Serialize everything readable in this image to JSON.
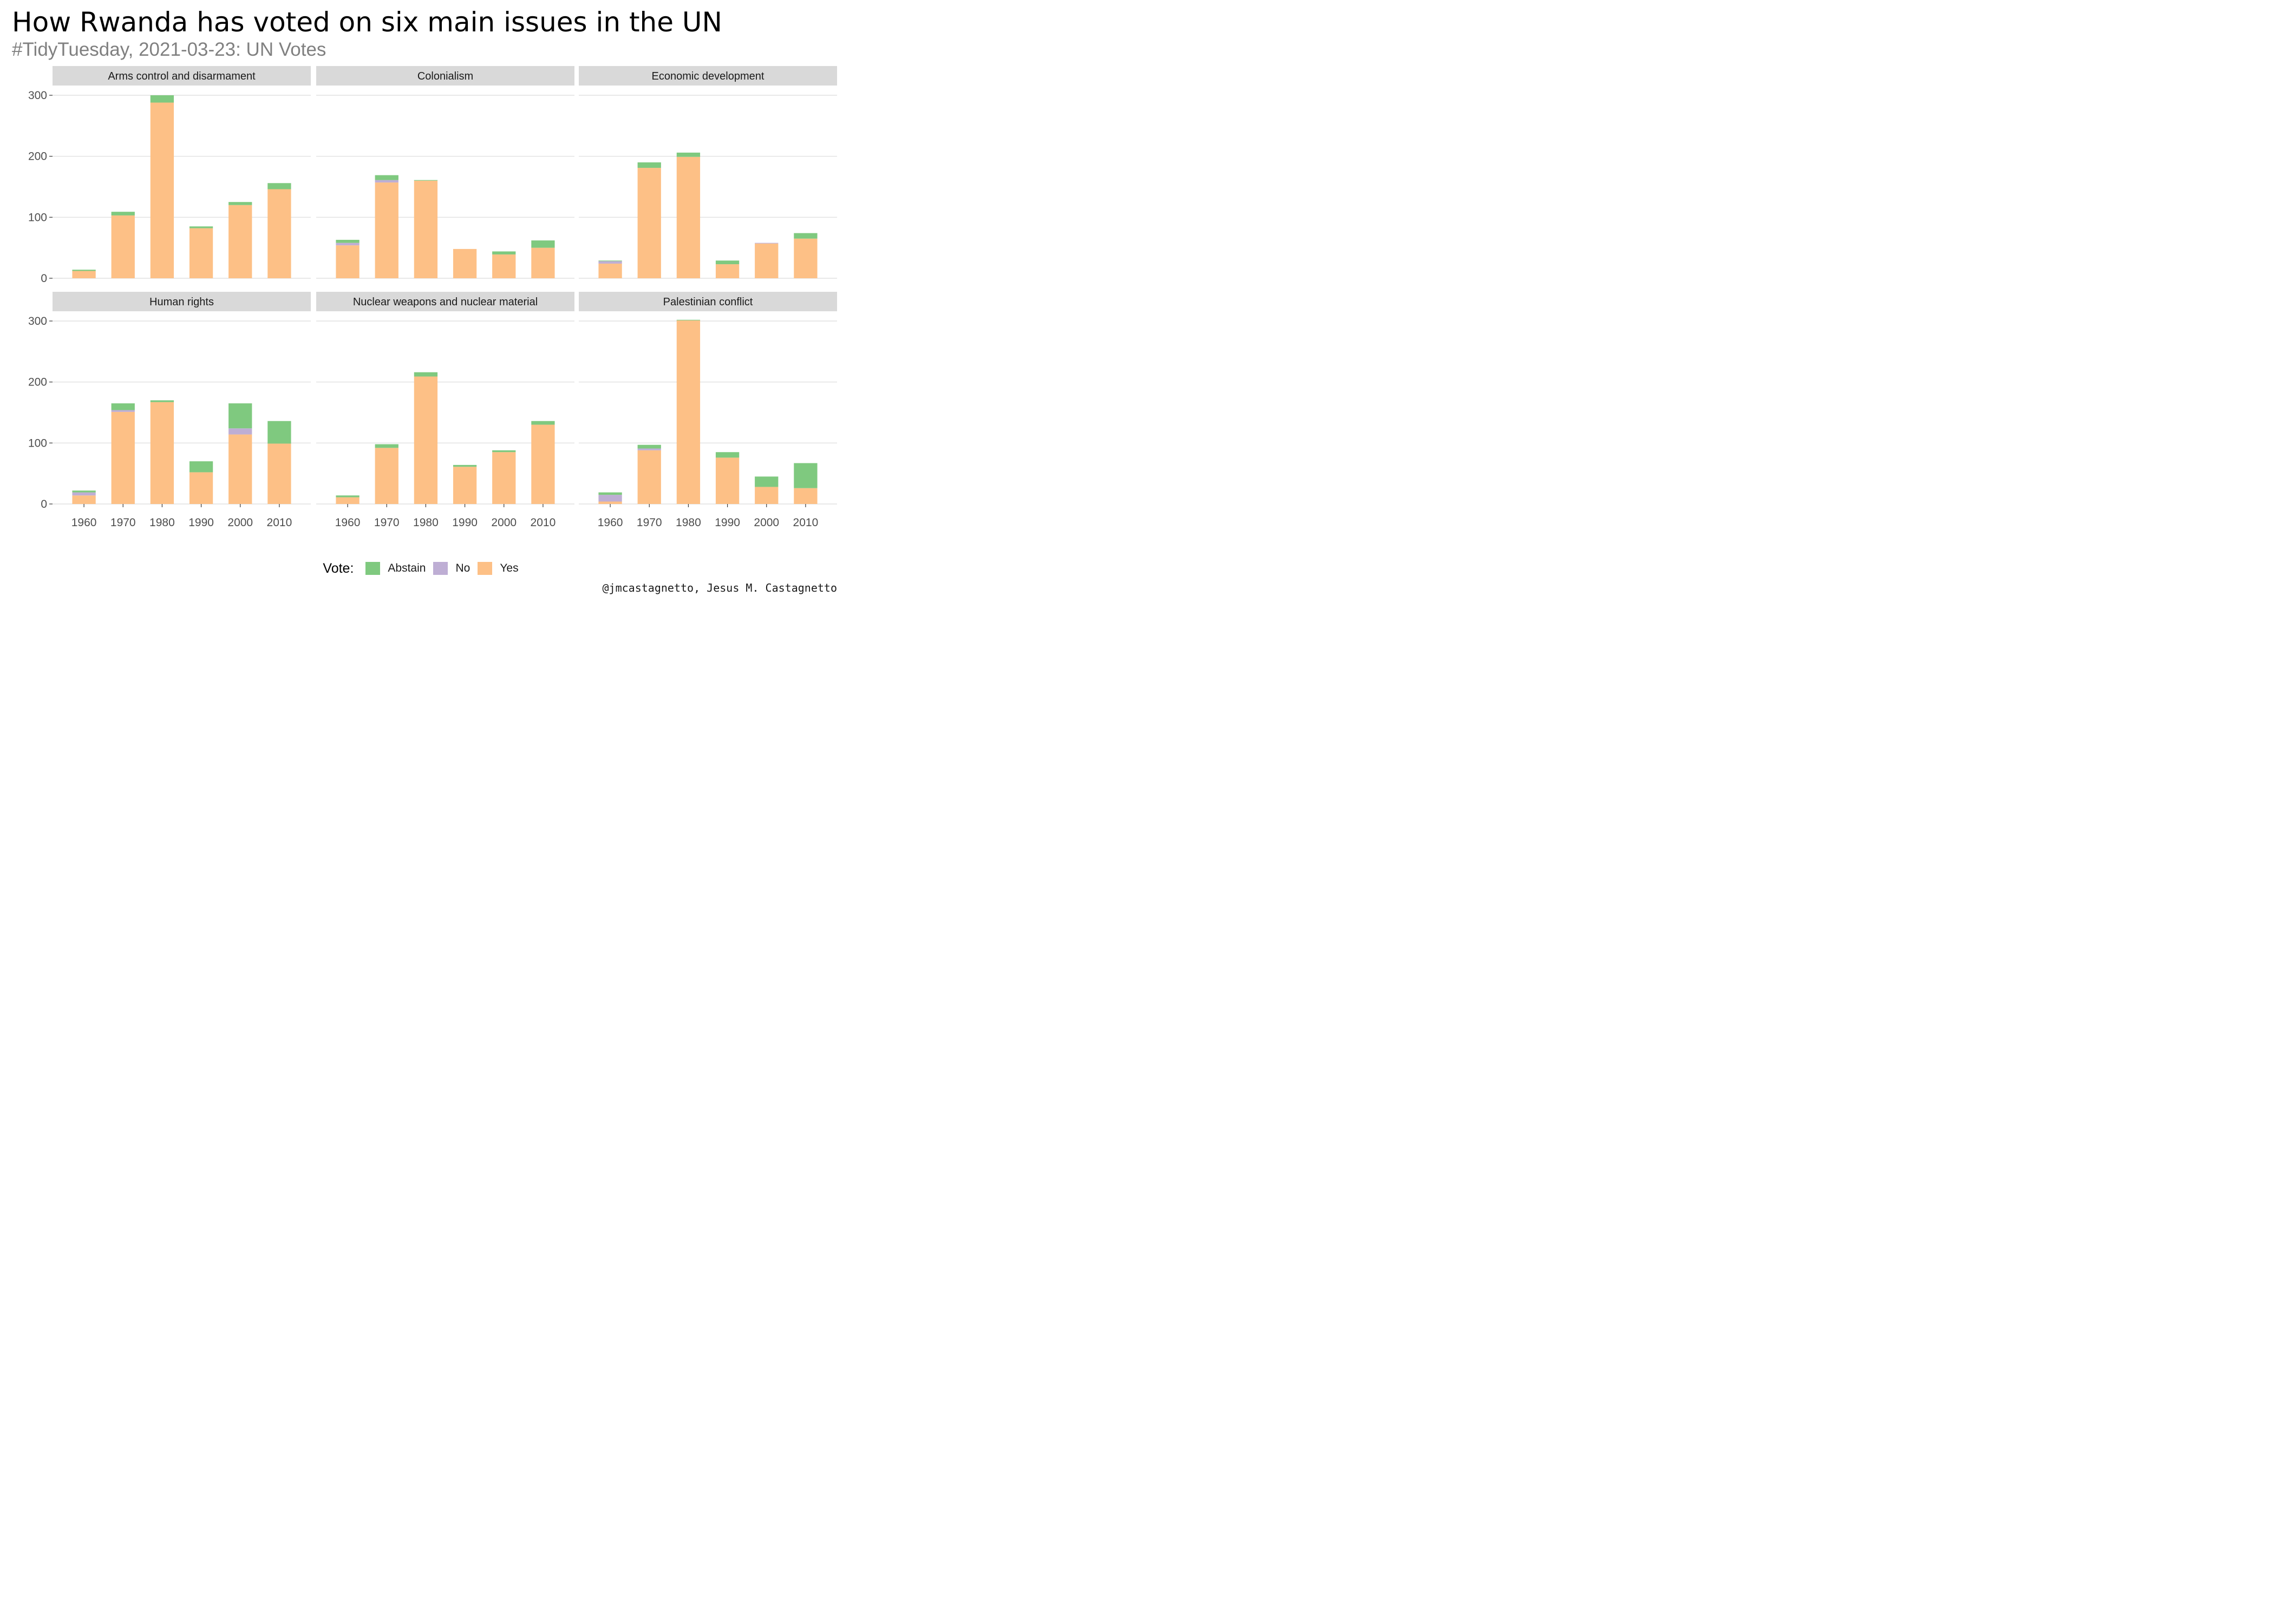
{
  "header": {
    "title": "How Rwanda has voted on six main issues in the UN",
    "subtitle": "#TidyTuesday, 2021-03-23: UN Votes"
  },
  "legend": {
    "title": "Vote:",
    "items": [
      {
        "label": "Abstain",
        "color": "#7fc97f"
      },
      {
        "label": "No",
        "color": "#beaed4"
      },
      {
        "label": "Yes",
        "color": "#fdc086"
      }
    ]
  },
  "caption": "@jmcastagnetto, Jesus M. Castagnetto",
  "chart_data": {
    "type": "bar",
    "stacked": true,
    "facet_layout": "3 columns x 2 rows",
    "categories": [
      "1960",
      "1970",
      "1980",
      "1990",
      "2000",
      "2010"
    ],
    "y_ticks": [
      0,
      100,
      200,
      300
    ],
    "ylim": [
      0,
      310
    ],
    "grid": true,
    "legend_position": "bottom",
    "stack_order_bottom_to_top": [
      "Yes",
      "No",
      "Abstain"
    ],
    "panels": [
      {
        "title": "Arms control and disarmament",
        "series": [
          {
            "name": "Yes",
            "values": [
              12,
              103,
              288,
              82,
              120,
              146
            ]
          },
          {
            "name": "No",
            "values": [
              0,
              0,
              0,
              0,
              0,
              0
            ]
          },
          {
            "name": "Abstain",
            "values": [
              2,
              6,
              12,
              3,
              5,
              10
            ]
          }
        ]
      },
      {
        "title": "Colonialism",
        "series": [
          {
            "name": "Yes",
            "values": [
              54,
              157,
              160,
              48,
              39,
              50
            ]
          },
          {
            "name": "No",
            "values": [
              4,
              4,
              0,
              0,
              0,
              0
            ]
          },
          {
            "name": "Abstain",
            "values": [
              5,
              8,
              1,
              0,
              5,
              12
            ]
          }
        ]
      },
      {
        "title": "Economic development",
        "series": [
          {
            "name": "Yes",
            "values": [
              24,
              181,
              199,
              23,
              57,
              65
            ]
          },
          {
            "name": "No",
            "values": [
              4,
              0,
              0,
              0,
              1,
              0
            ]
          },
          {
            "name": "Abstain",
            "values": [
              1,
              9,
              7,
              6,
              0,
              9
            ]
          }
        ]
      },
      {
        "title": "Human rights",
        "series": [
          {
            "name": "Yes",
            "values": [
              14,
              151,
              167,
              52,
              114,
              99
            ]
          },
          {
            "name": "No",
            "values": [
              5,
              3,
              0,
              0,
              10,
              0
            ]
          },
          {
            "name": "Abstain",
            "values": [
              3,
              11,
              3,
              18,
              41,
              37
            ]
          }
        ]
      },
      {
        "title": "Nuclear weapons and nuclear material",
        "series": [
          {
            "name": "Yes",
            "values": [
              11,
              92,
              209,
              61,
              85,
              130
            ]
          },
          {
            "name": "No",
            "values": [
              0,
              0,
              0,
              0,
              0,
              0
            ]
          },
          {
            "name": "Abstain",
            "values": [
              3,
              6,
              7,
              3,
              3,
              6
            ]
          }
        ]
      },
      {
        "title": "Palestinian conflict",
        "series": [
          {
            "name": "Yes",
            "values": [
              4,
              88,
              301,
              76,
              28,
              26
            ]
          },
          {
            "name": "No",
            "values": [
              11,
              3,
              0,
              0,
              0,
              0
            ]
          },
          {
            "name": "Abstain",
            "values": [
              4,
              6,
              1,
              9,
              17,
              41
            ]
          }
        ]
      }
    ]
  }
}
